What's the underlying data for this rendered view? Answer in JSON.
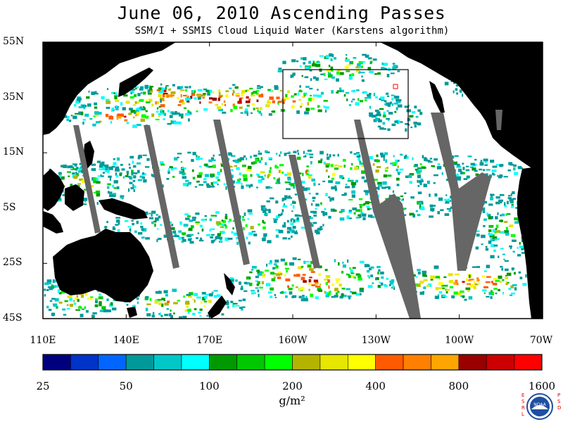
{
  "title": "June 06, 2010  Ascending Passes",
  "subtitle": "SSM/I + SSMIS Cloud Liquid Water (Karstens algorithm)",
  "map": {
    "lon_range": [
      110,
      290
    ],
    "lat_range": [
      -45,
      55
    ],
    "lat_ticks": [
      {
        "value": 55,
        "label": "55N"
      },
      {
        "value": 35,
        "label": "35N"
      },
      {
        "value": 15,
        "label": "15N"
      },
      {
        "value": -5,
        "label": "5S"
      },
      {
        "value": -25,
        "label": "25S"
      },
      {
        "value": -45,
        "label": "45S"
      }
    ],
    "lon_ticks": [
      {
        "value": 110,
        "label": "110E"
      },
      {
        "value": 140,
        "label": "140E"
      },
      {
        "value": 170,
        "label": "170E"
      },
      {
        "value": 200,
        "label": "160W"
      },
      {
        "value": 230,
        "label": "130W"
      },
      {
        "value": 260,
        "label": "100W"
      },
      {
        "value": 290,
        "label": "70W"
      }
    ],
    "land_color": "#000000",
    "ocean_color": "#ffffff",
    "gap_color": "#666666"
  },
  "colorbar": {
    "colors": [
      "#00007f",
      "#0033c8",
      "#0066ff",
      "#009999",
      "#00c8c8",
      "#00ffff",
      "#009900",
      "#00c800",
      "#00ff00",
      "#b4b400",
      "#e6e600",
      "#ffff00",
      "#ff5a00",
      "#ff7f00",
      "#ffa500",
      "#990000",
      "#cc0000",
      "#ff0000"
    ],
    "labels": [
      "25",
      "50",
      "100",
      "200",
      "400",
      "800",
      "1600"
    ],
    "units": "g/m²"
  },
  "logo": {
    "left_letters": "ESRL",
    "right_letters": "PSD",
    "center": "NOAA"
  }
}
